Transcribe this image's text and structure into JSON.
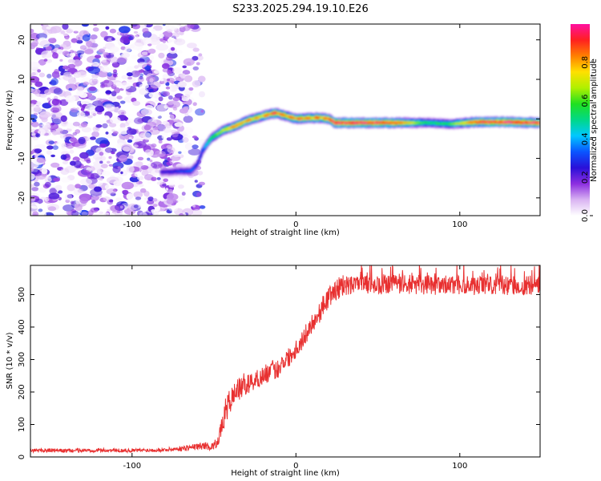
{
  "title": "S233.2025.294.19.10.E26",
  "chart_data": [
    {
      "type": "heatmap",
      "title": "S233.2025.294.19.10.E26",
      "xlabel": "Height of straight line (km)",
      "ylabel": "Frequency (Hz)",
      "xlim": [
        -162,
        149
      ],
      "ylim": [
        -24.5,
        24
      ],
      "xticks": [
        -100,
        0,
        100
      ],
      "yticks": [
        -20,
        -10,
        0,
        10,
        20
      ],
      "xtick_labels": [
        "-100",
        "0",
        "100"
      ],
      "ytick_labels": [
        "-20",
        "-10",
        "0",
        "10",
        "20"
      ],
      "colorbar": {
        "label": "Normalized spectral amplitude",
        "range": [
          0,
          1
        ],
        "ticks": [
          0.0,
          0.2,
          0.4,
          0.6,
          0.8
        ],
        "tick_labels": [
          "0.0",
          "0.2",
          "0.4",
          "0.6",
          "0.8"
        ],
        "colors": [
          "#ffffff",
          "#d9b3f2",
          "#8c2ee0",
          "#2a10d8",
          "#0a55ff",
          "#00c8ff",
          "#00d888",
          "#20e020",
          "#b0f000",
          "#ffe000",
          "#ff8000",
          "#ff2020",
          "#ff10a0"
        ]
      },
      "noise_region_x": [
        -162,
        -57
      ],
      "signal_trace": {
        "x": [
          -82,
          -72,
          -64,
          -60,
          -57,
          -52,
          -45,
          -38,
          -30,
          -22,
          -15,
          -12,
          -8,
          0,
          8,
          15,
          20,
          24,
          40,
          60,
          80,
          95,
          110,
          130,
          149
        ],
        "y": [
          -13.5,
          -13.3,
          -13.2,
          -11.5,
          -8,
          -5,
          -3,
          -2,
          -0.5,
          0.5,
          1.3,
          1.5,
          1.0,
          0.0,
          0.2,
          0.3,
          0.0,
          -1.0,
          -1.0,
          -1.0,
          -1.0,
          -1.3,
          -0.8,
          -0.8,
          -1.0
        ],
        "amplitude": [
          0.25,
          0.3,
          0.35,
          0.3,
          0.35,
          0.55,
          0.7,
          0.85,
          0.9,
          0.85,
          0.95,
          1.0,
          0.9,
          0.95,
          0.9,
          0.95,
          0.9,
          1.0,
          1.0,
          0.95,
          0.55,
          0.6,
          0.95,
          1.0,
          0.95
        ]
      }
    },
    {
      "type": "line",
      "xlabel": "Height of straight line (km)",
      "ylabel": "SNR (10 * v/v)",
      "xlim": [
        -162,
        149
      ],
      "ylim": [
        0,
        590
      ],
      "xticks": [
        -100,
        0,
        100
      ],
      "yticks": [
        0,
        100,
        200,
        300,
        400,
        500
      ],
      "xtick_labels": [
        "-100",
        "0",
        "100"
      ],
      "ytick_labels": [
        "0",
        "100",
        "200",
        "300",
        "400",
        "500"
      ],
      "color": "#e83030",
      "series": [
        {
          "name": "SNR",
          "x": [
            -162,
            -150,
            -140,
            -130,
            -120,
            -110,
            -100,
            -90,
            -80,
            -70,
            -60,
            -55,
            -52,
            -49,
            -47,
            -45,
            -43,
            -41,
            -39,
            -37,
            -36,
            -34,
            -32,
            -30,
            -28,
            -25,
            -22,
            -20,
            -17,
            -14,
            -12,
            -10,
            -8,
            -5,
            -2,
            0,
            3,
            5,
            8,
            10,
            13,
            15,
            17,
            20,
            22,
            25,
            28,
            30,
            40,
            50,
            60,
            70,
            80,
            90,
            100,
            110,
            120,
            130,
            140,
            149
          ],
          "y": [
            20,
            20,
            19,
            20,
            21,
            20,
            20,
            21,
            22,
            26,
            32,
            35,
            30,
            40,
            60,
            95,
            140,
            165,
            180,
            200,
            215,
            205,
            225,
            220,
            230,
            235,
            245,
            250,
            260,
            270,
            265,
            280,
            295,
            305,
            320,
            335,
            350,
            370,
            395,
            415,
            430,
            450,
            470,
            490,
            505,
            515,
            520,
            525,
            530,
            530,
            528,
            532,
            530,
            528,
            530,
            528,
            530,
            526,
            528,
            530
          ],
          "noise": [
            6,
            6,
            6,
            6,
            6,
            6,
            6,
            6,
            6,
            8,
            10,
            12,
            10,
            15,
            20,
            30,
            40,
            40,
            40,
            35,
            35,
            35,
            35,
            30,
            30,
            30,
            30,
            30,
            30,
            30,
            30,
            30,
            30,
            30,
            30,
            30,
            30,
            30,
            30,
            30,
            30,
            32,
            32,
            32,
            32,
            32,
            32,
            32,
            30,
            30,
            30,
            30,
            30,
            30,
            30,
            30,
            30,
            30,
            30,
            30
          ]
        }
      ]
    }
  ]
}
